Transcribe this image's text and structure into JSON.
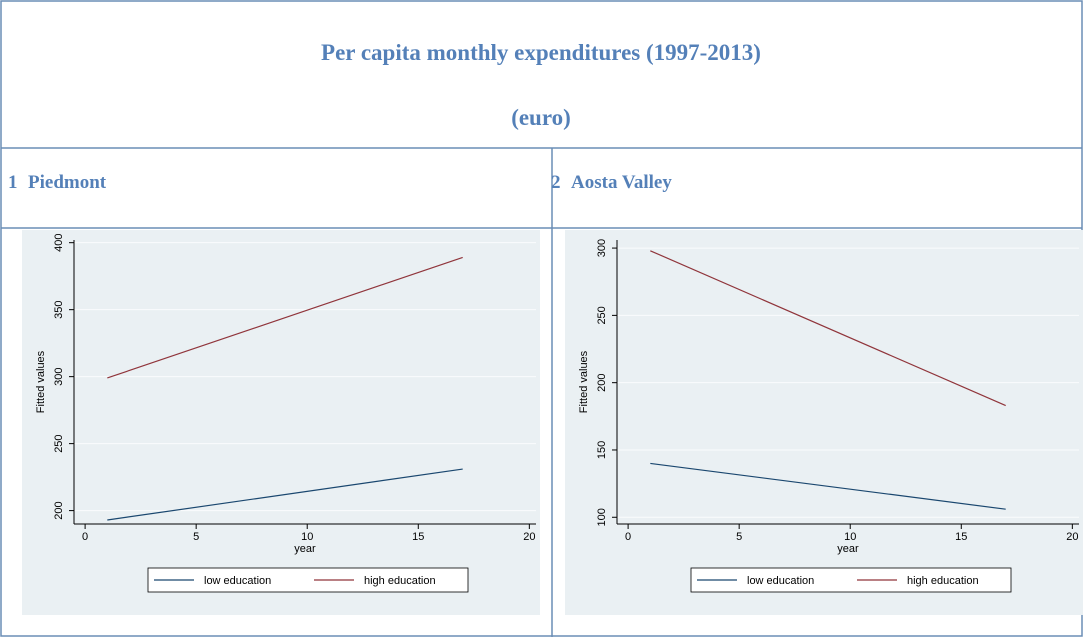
{
  "header": {
    "title": "Per capita monthly expenditures (1997-2013)",
    "subtitle": "(euro)"
  },
  "chart_data": [
    {
      "type": "line",
      "panel_number": "1",
      "panel_title": "Piedmont",
      "x": [
        1,
        17
      ],
      "xlim": [
        -0.5,
        20.3
      ],
      "xticks": [
        0,
        5,
        10,
        15,
        20
      ],
      "xlabel": "year",
      "ylim": [
        190,
        402
      ],
      "yticks": [
        200,
        250,
        300,
        350,
        400
      ],
      "ylabel": "Fitted values",
      "grid": true,
      "series": [
        {
          "name": "low education",
          "color": "#1a476f",
          "values": [
            193,
            231
          ]
        },
        {
          "name": "high education",
          "color": "#90353b",
          "values": [
            299,
            389
          ]
        }
      ]
    },
    {
      "type": "line",
      "panel_number": "2",
      "panel_title": "Aosta Valley",
      "x": [
        1,
        17
      ],
      "xlim": [
        -0.5,
        20.3
      ],
      "xticks": [
        0,
        5,
        10,
        15,
        20
      ],
      "xlabel": "year",
      "ylim": [
        95,
        306
      ],
      "yticks": [
        100,
        150,
        200,
        250,
        300
      ],
      "ylabel": "Fitted values",
      "grid": true,
      "series": [
        {
          "name": "low education",
          "color": "#1a476f",
          "values": [
            140,
            106
          ]
        },
        {
          "name": "high education",
          "color": "#90353b",
          "values": [
            298,
            183
          ]
        }
      ]
    }
  ]
}
